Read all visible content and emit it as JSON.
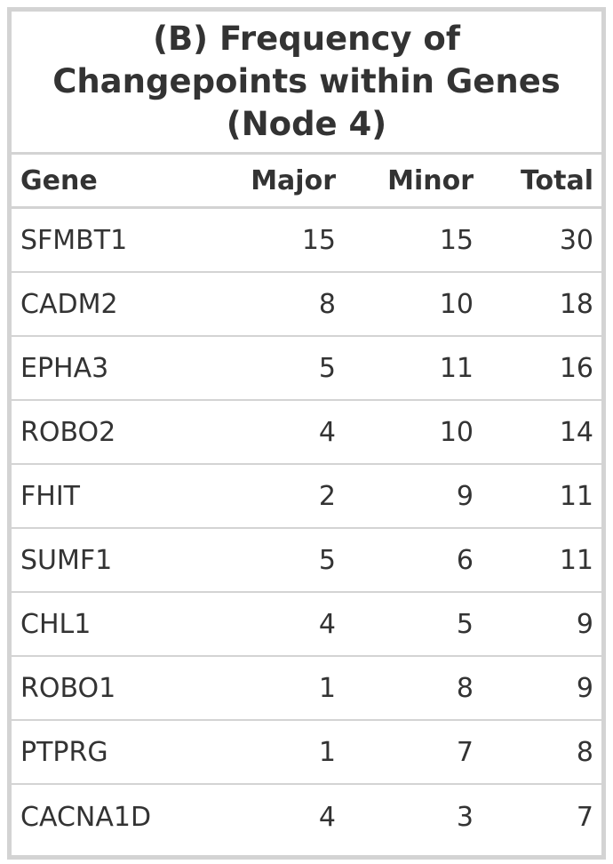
{
  "chart_data": {
    "type": "table",
    "title_lines": [
      "(B) Frequency of",
      "Changepoints within Genes",
      "(Node 4)"
    ],
    "columns": [
      "Gene",
      "Major",
      "Minor",
      "Total"
    ],
    "rows": [
      {
        "gene": "SFMBT1",
        "major": 15,
        "minor": 15,
        "total": 30
      },
      {
        "gene": "CADM2",
        "major": 8,
        "minor": 10,
        "total": 18
      },
      {
        "gene": "EPHA3",
        "major": 5,
        "minor": 11,
        "total": 16
      },
      {
        "gene": "ROBO2",
        "major": 4,
        "minor": 10,
        "total": 14
      },
      {
        "gene": "FHIT",
        "major": 2,
        "minor": 9,
        "total": 11
      },
      {
        "gene": "SUMF1",
        "major": 5,
        "minor": 6,
        "total": 11
      },
      {
        "gene": "CHL1",
        "major": 4,
        "minor": 5,
        "total": 9
      },
      {
        "gene": "ROBO1",
        "major": 1,
        "minor": 8,
        "total": 9
      },
      {
        "gene": "PTPRG",
        "major": 1,
        "minor": 7,
        "total": 8
      },
      {
        "gene": "CACNA1D",
        "major": 4,
        "minor": 3,
        "total": 7
      }
    ]
  }
}
